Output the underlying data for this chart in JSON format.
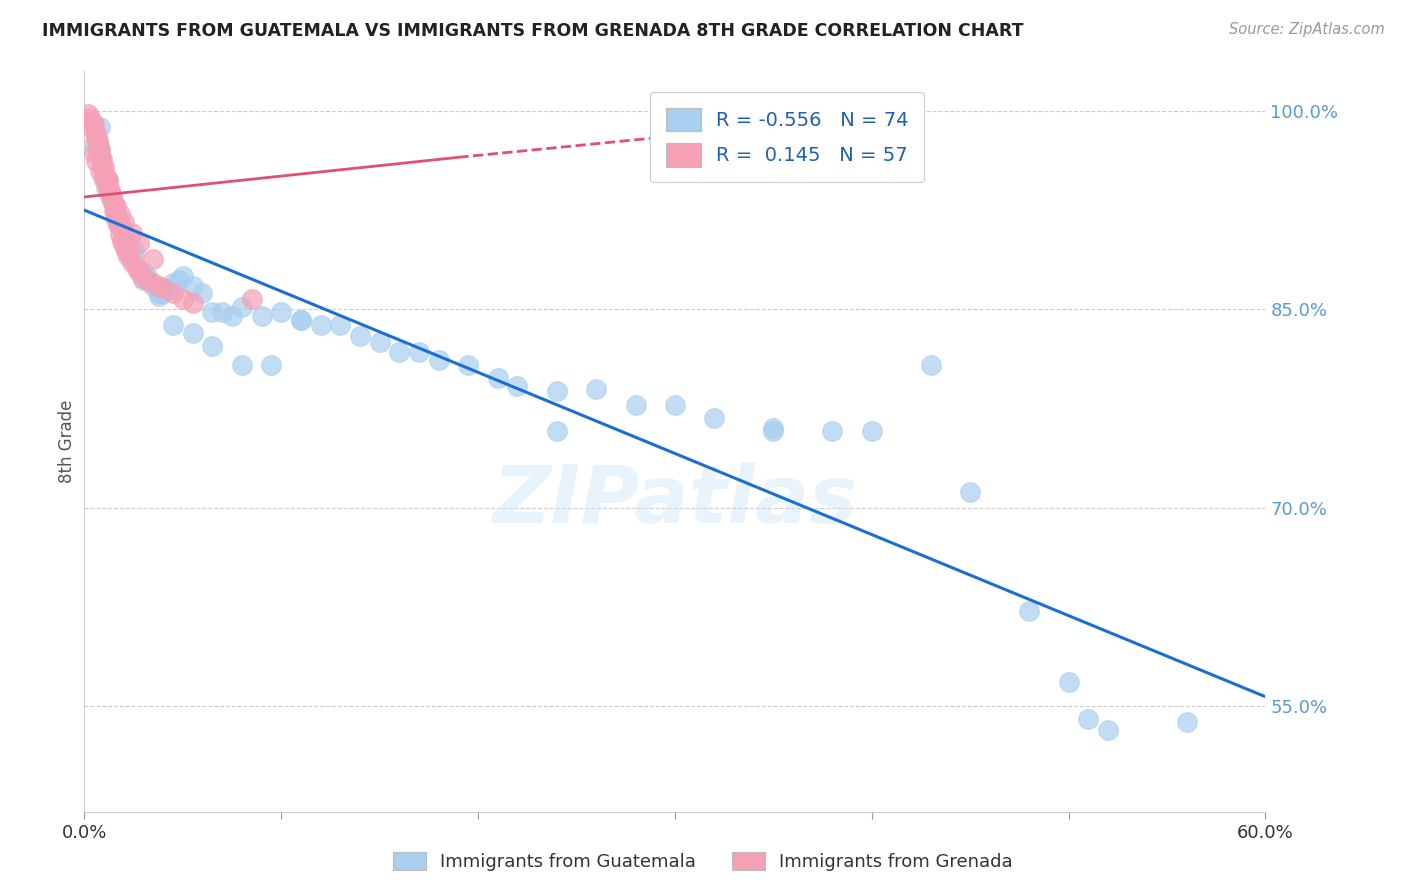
{
  "title": "IMMIGRANTS FROM GUATEMALA VS IMMIGRANTS FROM GRENADA 8TH GRADE CORRELATION CHART",
  "source": "Source: ZipAtlas.com",
  "ylabel": "8th Grade",
  "y_ticks": [
    0.55,
    0.7,
    0.85,
    1.0
  ],
  "y_tick_labels": [
    "55.0%",
    "70.0%",
    "85.0%",
    "100.0%"
  ],
  "x_range": [
    0.0,
    0.6
  ],
  "y_range": [
    0.47,
    1.03
  ],
  "blue_R": -0.556,
  "blue_N": 74,
  "pink_R": 0.145,
  "pink_N": 57,
  "blue_color": "#a8cef0",
  "pink_color": "#f5a0b5",
  "line_blue_color": "#1a6fd4",
  "line_pink_color": "#e05070",
  "watermark": "ZIPatlas",
  "blue_line_x0": 0.0,
  "blue_line_y0": 0.925,
  "blue_line_x1": 0.6,
  "blue_line_y1": 0.557,
  "pink_line_x0": 0.0,
  "pink_line_y0": 0.935,
  "pink_line_x1": 0.19,
  "pink_line_y1": 0.965,
  "pink_line_dashed_x0": 0.19,
  "pink_line_dashed_y0": 0.965,
  "pink_line_dashed_x1": 0.36,
  "pink_line_dashed_y1": 0.99,
  "blue_points_x": [
    0.005,
    0.006,
    0.007,
    0.008,
    0.009,
    0.01,
    0.011,
    0.012,
    0.013,
    0.015,
    0.016,
    0.018,
    0.02,
    0.022,
    0.025,
    0.028,
    0.03,
    0.032,
    0.035,
    0.038,
    0.04,
    0.042,
    0.045,
    0.048,
    0.05,
    0.055,
    0.06,
    0.065,
    0.07,
    0.075,
    0.08,
    0.09,
    0.1,
    0.11,
    0.12,
    0.13,
    0.14,
    0.15,
    0.16,
    0.17,
    0.18,
    0.195,
    0.21,
    0.22,
    0.24,
    0.26,
    0.28,
    0.3,
    0.32,
    0.35,
    0.38,
    0.4,
    0.45,
    0.48,
    0.5,
    0.52,
    0.56,
    0.008,
    0.012,
    0.016,
    0.02,
    0.025,
    0.03,
    0.038,
    0.045,
    0.055,
    0.065,
    0.08,
    0.095,
    0.11,
    0.24,
    0.35,
    0.43,
    0.51
  ],
  "blue_points_y": [
    0.975,
    0.98,
    0.968,
    0.972,
    0.958,
    0.95,
    0.942,
    0.945,
    0.938,
    0.93,
    0.922,
    0.915,
    0.905,
    0.898,
    0.89,
    0.88,
    0.872,
    0.875,
    0.868,
    0.86,
    0.862,
    0.865,
    0.87,
    0.872,
    0.875,
    0.868,
    0.862,
    0.848,
    0.848,
    0.845,
    0.852,
    0.845,
    0.848,
    0.842,
    0.838,
    0.838,
    0.83,
    0.825,
    0.818,
    0.818,
    0.812,
    0.808,
    0.798,
    0.792,
    0.758,
    0.79,
    0.778,
    0.778,
    0.768,
    0.76,
    0.758,
    0.758,
    0.712,
    0.622,
    0.568,
    0.532,
    0.538,
    0.988,
    0.948,
    0.918,
    0.908,
    0.895,
    0.878,
    0.862,
    0.838,
    0.832,
    0.822,
    0.808,
    0.808,
    0.842,
    0.788,
    0.758,
    0.808,
    0.54
  ],
  "pink_points_x": [
    0.002,
    0.003,
    0.004,
    0.005,
    0.005,
    0.006,
    0.006,
    0.007,
    0.007,
    0.007,
    0.008,
    0.008,
    0.009,
    0.009,
    0.01,
    0.01,
    0.011,
    0.012,
    0.012,
    0.013,
    0.013,
    0.014,
    0.015,
    0.015,
    0.016,
    0.016,
    0.017,
    0.018,
    0.018,
    0.019,
    0.02,
    0.021,
    0.022,
    0.024,
    0.026,
    0.028,
    0.03,
    0.032,
    0.035,
    0.038,
    0.04,
    0.045,
    0.05,
    0.055,
    0.005,
    0.006,
    0.008,
    0.01,
    0.012,
    0.014,
    0.016,
    0.018,
    0.02,
    0.024,
    0.028,
    0.035,
    0.085
  ],
  "pink_points_y": [
    0.998,
    0.995,
    0.992,
    0.99,
    0.985,
    0.983,
    0.979,
    0.978,
    0.975,
    0.972,
    0.97,
    0.966,
    0.964,
    0.96,
    0.958,
    0.953,
    0.95,
    0.948,
    0.943,
    0.94,
    0.936,
    0.932,
    0.93,
    0.924,
    0.922,
    0.918,
    0.914,
    0.912,
    0.906,
    0.902,
    0.898,
    0.894,
    0.89,
    0.886,
    0.882,
    0.878,
    0.874,
    0.872,
    0.87,
    0.868,
    0.866,
    0.862,
    0.858,
    0.855,
    0.968,
    0.962,
    0.955,
    0.948,
    0.942,
    0.936,
    0.928,
    0.922,
    0.916,
    0.908,
    0.9,
    0.888,
    0.858
  ]
}
